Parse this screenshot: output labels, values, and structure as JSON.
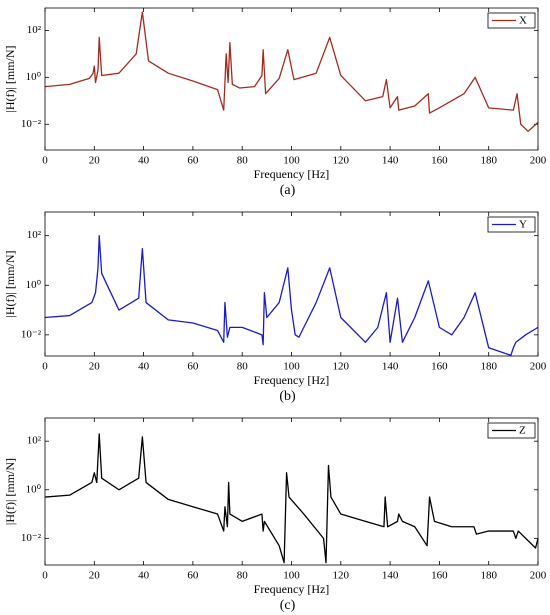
{
  "chart_data": [
    {
      "type": "line",
      "xlabel": "Frequency [Hz]",
      "ylabel": "|H(f)| [mm/N]",
      "caption": "(a)",
      "log_y": true,
      "grid": false,
      "legend": "upper right",
      "xlim": [
        0,
        200
      ],
      "xticks": [
        0,
        20,
        40,
        60,
        80,
        100,
        120,
        140,
        160,
        180,
        200
      ],
      "ylim": [
        0.0008,
        900
      ],
      "yticks": [
        {
          "value": 0.01,
          "label": "10⁻²"
        },
        {
          "value": 1,
          "label": "10⁰"
        },
        {
          "value": 100,
          "label": "10²"
        }
      ],
      "x": [
        0,
        10,
        18,
        19.5,
        20,
        20.5,
        21.5,
        22,
        23,
        30,
        37,
        39.5,
        42,
        50,
        60,
        70,
        72.5,
        73.5,
        74.3,
        75,
        76,
        79,
        85,
        88,
        88.5,
        89.5,
        95,
        98.5,
        101,
        110,
        115.5,
        120,
        130,
        137,
        138.5,
        140,
        143,
        143.5,
        150,
        155.5,
        156,
        160,
        170,
        174.5,
        180,
        190,
        191.5,
        193,
        196,
        200
      ],
      "series": [
        {
          "name": "X",
          "color": "#a52a1e",
          "values": [
            0.4,
            0.5,
            0.9,
            1.5,
            3,
            0.6,
            2,
            50,
            1.2,
            1.5,
            10,
            600,
            5,
            1.5,
            0.7,
            0.3,
            0.04,
            10,
            0.6,
            30,
            0.5,
            0.35,
            0.4,
            1.2,
            15,
            0.2,
            0.9,
            15,
            0.8,
            1.5,
            50,
            1.2,
            0.1,
            0.15,
            0.8,
            0.05,
            0.15,
            0.04,
            0.06,
            0.2,
            0.03,
            0.05,
            0.2,
            1,
            0.05,
            0.04,
            0.2,
            0.01,
            0.005,
            0.012
          ]
        }
      ]
    },
    {
      "type": "line",
      "xlabel": "Frequency [Hz]",
      "ylabel": "|H(f)| [mm/N]",
      "caption": "(b)",
      "log_y": true,
      "grid": false,
      "legend": "upper right",
      "xlim": [
        0,
        200
      ],
      "xticks": [
        0,
        20,
        40,
        60,
        80,
        100,
        120,
        140,
        160,
        180,
        200
      ],
      "ylim": [
        0.0014,
        900
      ],
      "yticks": [
        {
          "value": 0.01,
          "label": "10⁻²"
        },
        {
          "value": 1,
          "label": "10⁰"
        },
        {
          "value": 100,
          "label": "10²"
        }
      ],
      "x": [
        0,
        10,
        19,
        20.5,
        21.5,
        22,
        23,
        30,
        38,
        39.5,
        41,
        50,
        60,
        70,
        72.5,
        73,
        74,
        75,
        80,
        88,
        88.5,
        89,
        90,
        95,
        98.5,
        100,
        101.5,
        103,
        110,
        115.5,
        120,
        130,
        135,
        138.5,
        140,
        143,
        145,
        150,
        155.5,
        160,
        165,
        170,
        174.5,
        180,
        189,
        190,
        191,
        195,
        200
      ],
      "series": [
        {
          "name": "Y",
          "color": "#1a1acd",
          "values": [
            0.05,
            0.06,
            0.2,
            0.5,
            5,
            100,
            3,
            0.1,
            0.3,
            30,
            0.2,
            0.04,
            0.03,
            0.015,
            0.005,
            0.2,
            0.008,
            0.02,
            0.02,
            0.01,
            0.004,
            0.5,
            0.05,
            0.2,
            5,
            0.1,
            0.01,
            0.008,
            0.2,
            5,
            0.05,
            0.005,
            0.02,
            0.5,
            0.005,
            0.3,
            0.005,
            0.05,
            1.5,
            0.02,
            0.01,
            0.05,
            0.5,
            0.003,
            0.0015,
            0.003,
            0.005,
            0.01,
            0.02
          ]
        }
      ]
    },
    {
      "type": "line",
      "xlabel": "Frequency [Hz]",
      "ylabel": "|H(f)| [mm/N]",
      "caption": "(c)",
      "log_y": true,
      "grid": false,
      "legend": "upper right",
      "xlim": [
        0,
        200
      ],
      "xticks": [
        0,
        20,
        40,
        60,
        80,
        100,
        120,
        140,
        160,
        180,
        200
      ],
      "ylim": [
        0.0008,
        900
      ],
      "yticks": [
        {
          "value": 0.01,
          "label": "10⁻²"
        },
        {
          "value": 1,
          "label": "10⁰"
        },
        {
          "value": 100,
          "label": "10²"
        }
      ],
      "x": [
        0,
        10,
        19,
        20,
        21,
        22,
        23,
        30,
        38,
        39.5,
        41,
        50,
        60,
        70,
        72.5,
        73,
        74,
        74.5,
        75,
        80,
        88,
        88.5,
        89,
        95,
        97,
        98,
        99,
        105,
        113,
        114,
        115,
        116,
        120,
        130,
        137.5,
        138,
        139,
        143,
        143.5,
        145,
        150,
        155,
        156,
        158,
        165,
        174,
        175,
        180,
        190,
        191,
        192,
        199,
        200
      ],
      "series": [
        {
          "name": "Z",
          "color": "#000000",
          "values": [
            0.5,
            0.6,
            2,
            5,
            2,
            200,
            3,
            1,
            3,
            150,
            2,
            0.4,
            0.2,
            0.1,
            0.02,
            0.2,
            0.03,
            2,
            0.1,
            0.05,
            0.1,
            0.02,
            0.05,
            0.005,
            0.001,
            5,
            0.5,
            0.1,
            0.01,
            0.001,
            10,
            0.5,
            0.1,
            0.05,
            0.03,
            0.5,
            0.03,
            0.05,
            0.1,
            0.05,
            0.03,
            0.005,
            0.5,
            0.05,
            0.03,
            0.03,
            0.015,
            0.02,
            0.02,
            0.01,
            0.02,
            0.004,
            0.01
          ]
        }
      ]
    }
  ]
}
